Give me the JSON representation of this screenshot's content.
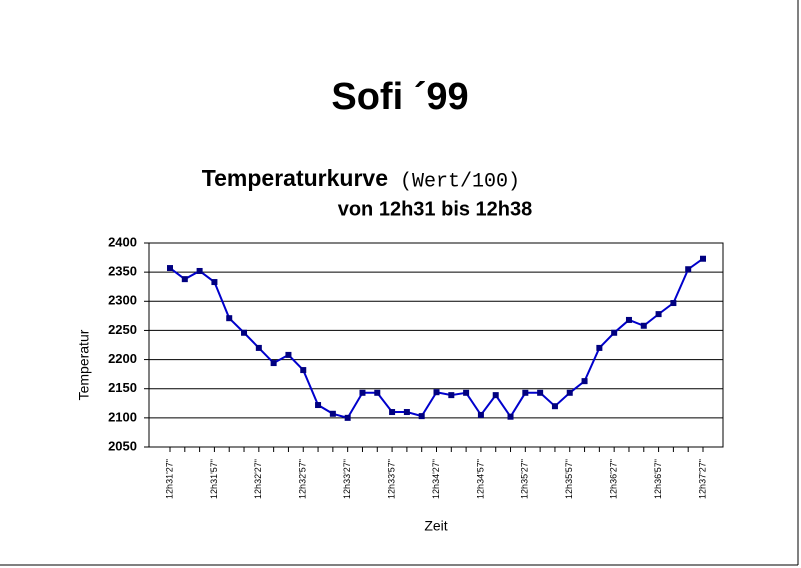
{
  "chart_data": {
    "type": "line",
    "title": "Sofi ´99",
    "subtitle": "Temperaturkurve",
    "subtitle_note": "(Wert/100)",
    "subtitle_range": "von 12h31 bis 12h38",
    "x_label": "Zeit",
    "y_label": "Temperatur",
    "categories": [
      "12h31'27\"",
      null,
      null,
      "12h31'57\"",
      null,
      null,
      "12h32'27\"",
      null,
      null,
      "12h32'57\"",
      null,
      null,
      "12h33'27\"",
      null,
      null,
      "12h33'57\"",
      null,
      null,
      "12h34'27\"",
      null,
      null,
      "12h34'57\"",
      null,
      null,
      "12h35'27\"",
      null,
      null,
      "12h35'57\"",
      null,
      null,
      "12h36'27\"",
      null,
      null,
      "12h36'57\"",
      null,
      null,
      "12h37'27\""
    ],
    "series": [
      {
        "name": "Temperatur",
        "color": "#0000cc",
        "marker_color": "#000080",
        "values": [
          2357,
          2338,
          2352,
          2333,
          2271,
          2246,
          2220,
          2194,
          2208,
          2182,
          2122,
          2107,
          2100,
          2143,
          2143,
          2110,
          2110,
          2103,
          2144,
          2139,
          2143,
          2105,
          2139,
          2102,
          2143,
          2143,
          2120,
          2143,
          2163,
          2220,
          2246,
          2268,
          2258,
          2278,
          2297,
          2355,
          2373
        ]
      }
    ],
    "ylim": [
      2050,
      2400
    ],
    "yticks": [
      2050,
      2100,
      2150,
      2200,
      2250,
      2300,
      2350,
      2400
    ],
    "grid": true
  }
}
